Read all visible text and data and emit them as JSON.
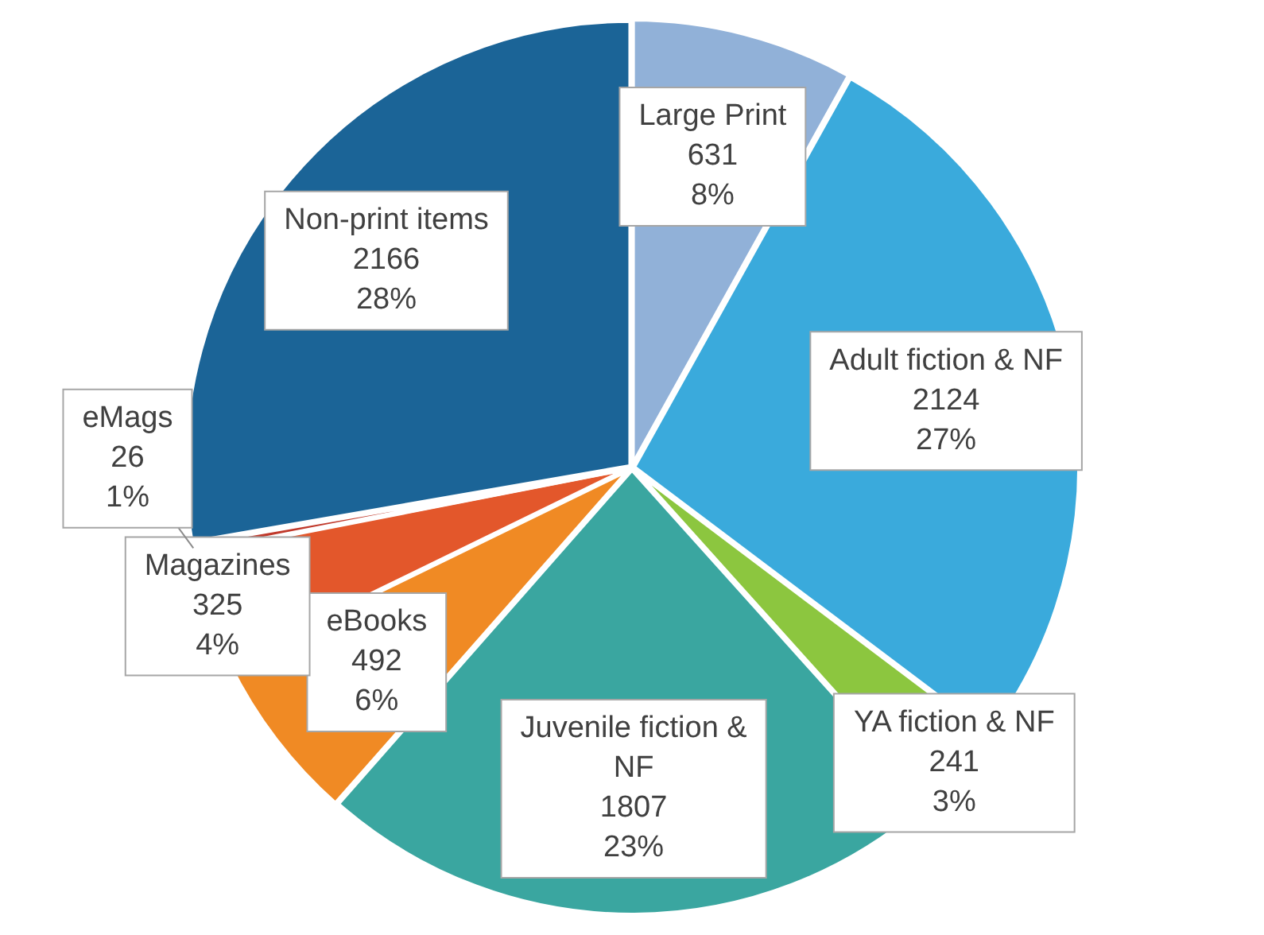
{
  "chart_data": {
    "type": "pie",
    "categories": [
      "Large Print",
      "Adult fiction & NF",
      "YA fiction & NF",
      "Juvenile fiction & NF",
      "eBooks",
      "Magazines",
      "eMags",
      "Non-print items"
    ],
    "values": [
      631,
      2124,
      241,
      1807,
      492,
      325,
      26,
      2166
    ],
    "colors": [
      "#91b1d8",
      "#3aaadc",
      "#8cc63f",
      "#3aa6a0",
      "#f08a24",
      "#e3572b",
      "#c0392b",
      "#1b6497"
    ],
    "value_labels": [
      "631\n8%",
      "2124\n27%",
      "241\n3%",
      "1807\n23%",
      "492\n6%",
      "325\n4%",
      "26\n1%",
      "2166\n28%"
    ]
  }
}
